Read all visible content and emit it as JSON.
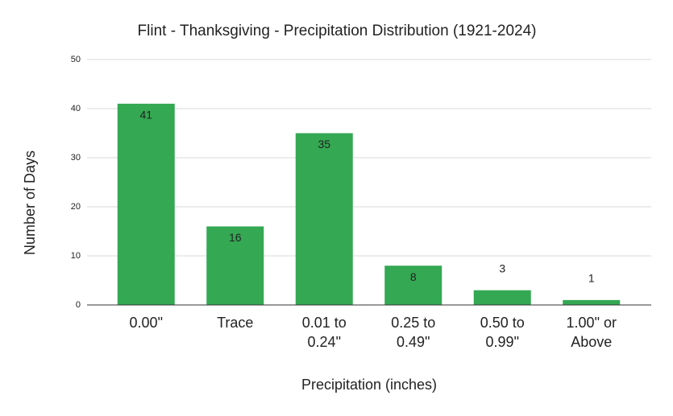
{
  "chart_data": {
    "type": "bar",
    "title": "Flint - Thanksgiving - Precipitation Distribution (1921-2024)",
    "x_label": "Precipitation (inches)",
    "y_label": "Number of Days",
    "categories": [
      "0.00\"",
      "Trace",
      "0.01 to 0.24\"",
      "0.25 to 0.49\"",
      "0.50 to 0.99\"",
      "1.00\" or Above"
    ],
    "values": [
      41,
      16,
      35,
      8,
      3,
      1
    ],
    "color": "#34a853",
    "ylim": [
      0,
      50
    ],
    "yticks": [
      0,
      10,
      20,
      30,
      40,
      50
    ],
    "grid": true
  }
}
